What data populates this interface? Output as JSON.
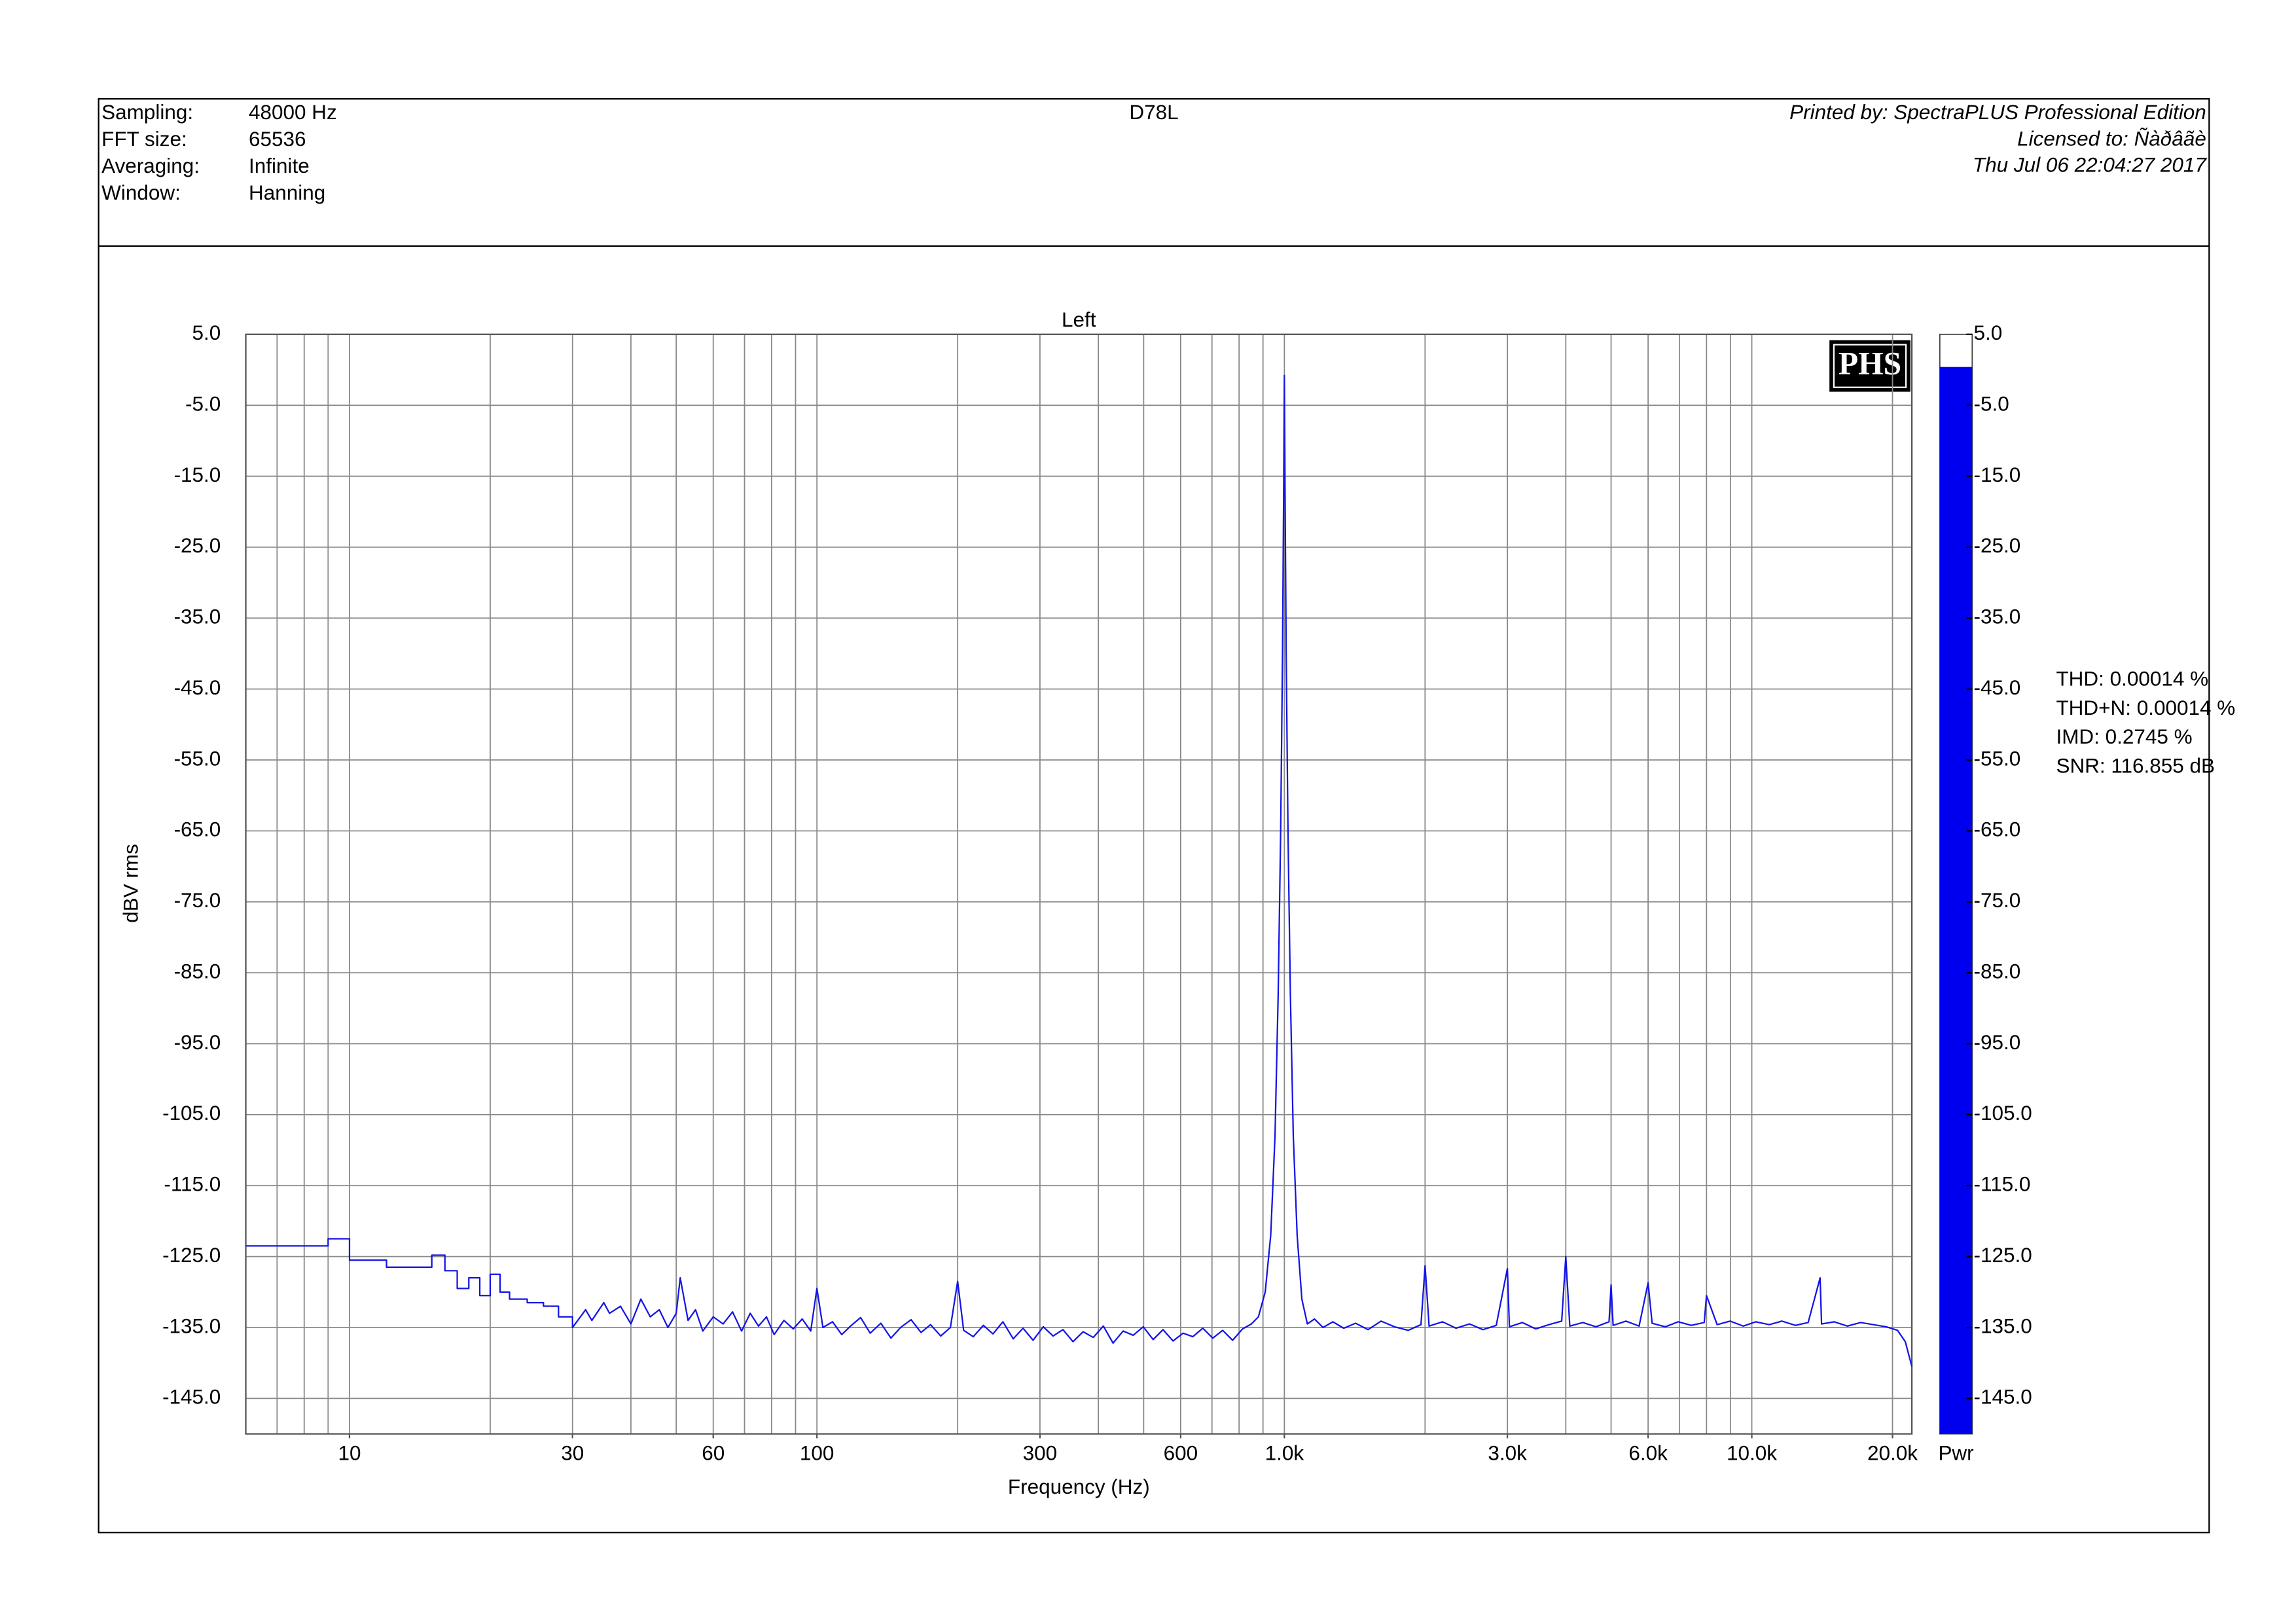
{
  "header": {
    "fields": [
      {
        "label": "Sampling:",
        "value": "48000 Hz"
      },
      {
        "label": "FFT size:",
        "value": "65536"
      },
      {
        "label": "Averaging:",
        "value": "Infinite"
      },
      {
        "label": "Window:",
        "value": "Hanning"
      }
    ],
    "title": "D78L",
    "printed_by": "Printed by: SpectraPLUS Professional Edition",
    "licensed_to": "Licensed to: Ñàðâãè",
    "date": "Thu Jul 06 22:04:27 2017"
  },
  "chart_data": {
    "type": "line",
    "title": "Left",
    "logo": "PHS",
    "x_label": "Frequency (Hz)",
    "y_label": "dBV rms",
    "color": "#1414e6",
    "x_log": true,
    "grid": true,
    "xlim": [
      6,
      22000
    ],
    "ylim": [
      -150,
      5
    ],
    "xticks": [
      10,
      30,
      60,
      100,
      300,
      600,
      {
        "value": 1000,
        "label": "1.0k"
      },
      {
        "value": 3000,
        "label": "3.0k"
      },
      {
        "value": 6000,
        "label": "6.0k"
      },
      {
        "value": 10000,
        "label": "10.0k"
      },
      {
        "value": 20000,
        "label": "20.0k"
      }
    ],
    "xgrid": [
      7,
      8,
      9,
      10,
      20,
      30,
      40,
      50,
      60,
      70,
      80,
      90,
      100,
      200,
      300,
      400,
      500,
      600,
      700,
      800,
      900,
      1000,
      2000,
      3000,
      4000,
      5000,
      6000,
      7000,
      8000,
      9000,
      10000,
      20000
    ],
    "yticks": [
      {
        "value": 5,
        "label": "5.0"
      },
      {
        "value": -5,
        "label": "-5.0"
      },
      {
        "value": -15,
        "label": "-15.0"
      },
      {
        "value": -25,
        "label": "-25.0"
      },
      {
        "value": -35,
        "label": "-35.0"
      },
      {
        "value": -45,
        "label": "-45.0"
      },
      {
        "value": -55,
        "label": "-55.0"
      },
      {
        "value": -65,
        "label": "-65.0"
      },
      {
        "value": -75,
        "label": "-75.0"
      },
      {
        "value": -85,
        "label": "-85.0"
      },
      {
        "value": -95,
        "label": "-95.0"
      },
      {
        "value": -105,
        "label": "-105.0"
      },
      {
        "value": -115,
        "label": "-115.0"
      },
      {
        "value": -125,
        "label": "-125.0"
      },
      {
        "value": -135,
        "label": "-135.0"
      },
      {
        "value": -145,
        "label": "-145.0"
      }
    ],
    "x": [
      6,
      9,
      9,
      10,
      10,
      12,
      12,
      15,
      15,
      16,
      16,
      17,
      17,
      18,
      18,
      19,
      19,
      20,
      20,
      21,
      21,
      22,
      22,
      24,
      24,
      26,
      26,
      28,
      28,
      30,
      30,
      32,
      33,
      35,
      36,
      38,
      40,
      42,
      44,
      46,
      48,
      50,
      51,
      53,
      55,
      57,
      60,
      63,
      66,
      69,
      72,
      75,
      78,
      81,
      85,
      89,
      93,
      97,
      100,
      103,
      108,
      113,
      118,
      124,
      130,
      137,
      144,
      151,
      159,
      167,
      175,
      184,
      193,
      200,
      206,
      216,
      227,
      238,
      250,
      263,
      276,
      290,
      305,
      320,
      336,
      353,
      371,
      390,
      410,
      430,
      452,
      475,
      499,
      524,
      550,
      578,
      607,
      637,
      669,
      703,
      738,
      775,
      814,
      850,
      880,
      910,
      935,
      955,
      970,
      982,
      991,
      997,
      1000,
      1003,
      1009,
      1018,
      1030,
      1045,
      1065,
      1090,
      1120,
      1160,
      1210,
      1270,
      1340,
      1420,
      1510,
      1610,
      1720,
      1840,
      1960,
      2000,
      2040,
      2180,
      2330,
      2490,
      2660,
      2840,
      3000,
      3030,
      3230,
      3450,
      3680,
      3920,
      4000,
      4080,
      4350,
      4640,
      4950,
      5000,
      5050,
      5380,
      5740,
      6000,
      6120,
      6530,
      6960,
      7420,
      7910,
      8000,
      8430,
      8990,
      9590,
      10200,
      10900,
      11600,
      12400,
      13200,
      14000,
      14100,
      15000,
      16000,
      17100,
      18200,
      19400,
      20500,
      21300,
      22000
    ],
    "values": [
      -123.5,
      -123.5,
      -122.5,
      -122.5,
      -125.5,
      -125.5,
      -126.5,
      -126.5,
      -124.8,
      -124.8,
      -127,
      -127,
      -129.5,
      -129.5,
      -128,
      -128,
      -130.5,
      -130.5,
      -127.5,
      -127.5,
      -130,
      -130,
      -131,
      -131,
      -131.5,
      -131.5,
      -132,
      -132,
      -133.5,
      -133.5,
      -135,
      -132.5,
      -134,
      -131.5,
      -133,
      -132,
      -134.5,
      -131,
      -133.5,
      -132.5,
      -135,
      -133,
      -128,
      -134,
      -132.5,
      -135.5,
      -133.5,
      -134.5,
      -132.8,
      -135.5,
      -133,
      -134.8,
      -133.5,
      -136,
      -134,
      -135.2,
      -133.8,
      -135.5,
      -129.5,
      -135,
      -134.2,
      -136,
      -134.8,
      -133.6,
      -135.8,
      -134.4,
      -136.5,
      -135,
      -133.9,
      -135.7,
      -134.6,
      -136.2,
      -135,
      -128.5,
      -135.4,
      -136.3,
      -134.7,
      -135.9,
      -134.2,
      -136.6,
      -135.1,
      -136.8,
      -134.9,
      -136.2,
      -135.3,
      -137,
      -135.6,
      -136.4,
      -134.8,
      -137.2,
      -135.5,
      -136.1,
      -134.9,
      -136.7,
      -135.3,
      -136.9,
      -135.8,
      -136.3,
      -135.1,
      -136.5,
      -135.4,
      -136.8,
      -135.2,
      -134.5,
      -133.5,
      -130,
      -122,
      -108,
      -88,
      -65,
      -40,
      -15,
      -0.8,
      -15,
      -40,
      -65,
      -88,
      -108,
      -122,
      -131,
      -134.5,
      -133.8,
      -135,
      -134.2,
      -135.1,
      -134.4,
      -135.3,
      -134.1,
      -134.9,
      -135.4,
      -134.6,
      -126.3,
      -134.8,
      -134.2,
      -135.1,
      -134.5,
      -135.3,
      -134.7,
      -126.7,
      -134.9,
      -134.3,
      -135.2,
      -134.6,
      -134.1,
      -125,
      -134.8,
      -134.3,
      -134.9,
      -134.2,
      -129,
      -134.7,
      -134.1,
      -134.8,
      -128.7,
      -134.4,
      -134.9,
      -134.2,
      -134.7,
      -134.3,
      -130.5,
      -134.6,
      -134.1,
      -134.8,
      -134.2,
      -134.6,
      -134.1,
      -134.7,
      -134.3,
      -128,
      -134.5,
      -134.2,
      -134.8,
      -134.3,
      -134.6,
      -134.9,
      -135.4,
      -137,
      -140.5
    ],
    "level_bar": {
      "label": "Pwr",
      "value": 0.4,
      "color": "#0000ee"
    },
    "annotations": [
      "THD: 0.00014 %",
      "THD+N: 0.00014 %",
      "IMD: 0.2745 %",
      "SNR: 116.855 dB"
    ]
  }
}
